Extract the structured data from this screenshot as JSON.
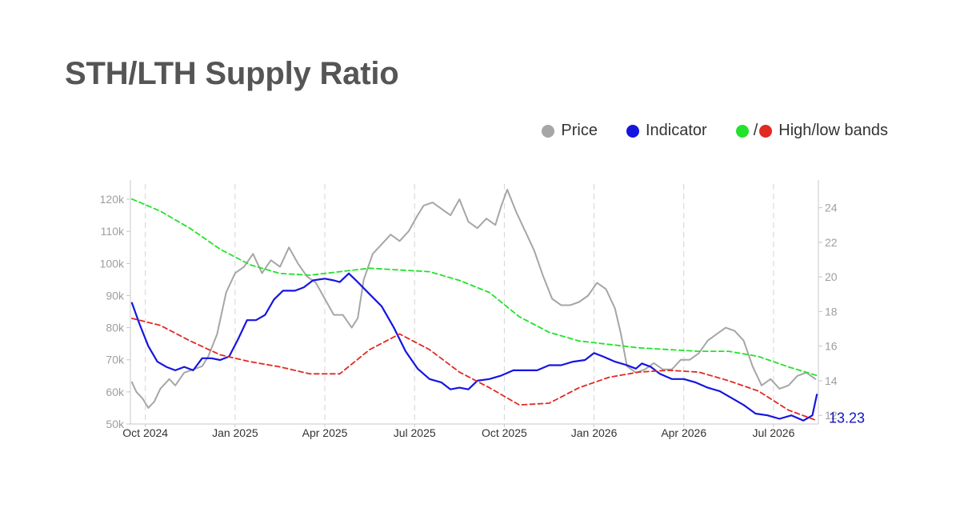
{
  "title": "STH/LTH Supply Ratio",
  "legend": {
    "price_label": "Price",
    "indicator_label": "Indicator",
    "bands_label": "High/low bands",
    "bands_separator": "/"
  },
  "colors": {
    "price": "#a6a6a6",
    "indicator": "#1515e0",
    "high_band": "#22e22b",
    "low_band": "#e02a22",
    "title": "#555555",
    "axis_text": "#9e9e9e",
    "last_value": "#1515c0"
  },
  "chart_data": {
    "type": "line",
    "last_value_label": "13.23",
    "x_ticks": [
      "Oct 2024",
      "Jan 2025",
      "Apr 2025",
      "Jul 2025",
      "Oct 2025",
      "Jan 2026",
      "Apr 2026",
      "Jul 2026"
    ],
    "x_range": [
      -0.5,
      22.5
    ],
    "y_left": {
      "ticks": [
        "50k",
        "60k",
        "70k",
        "80k",
        "90k",
        "100k",
        "110k",
        "120k"
      ],
      "range": [
        50000,
        126000
      ]
    },
    "y_right": {
      "ticks": [
        "12",
        "14",
        "16",
        "18",
        "20",
        "22",
        "24"
      ],
      "range": [
        11.5,
        25.6
      ]
    },
    "grid_vertical": true,
    "legend_position": "top-right",
    "series": [
      {
        "name": "Price",
        "axis": "left",
        "points": [
          [
            -0.45,
            63000
          ],
          [
            -0.3,
            60000
          ],
          [
            -0.1,
            58000
          ],
          [
            0.1,
            55000
          ],
          [
            0.3,
            57000
          ],
          [
            0.5,
            61000
          ],
          [
            0.8,
            64000
          ],
          [
            1.0,
            62000
          ],
          [
            1.3,
            66000
          ],
          [
            1.6,
            67000
          ],
          [
            1.9,
            68000
          ],
          [
            2.1,
            71000
          ],
          [
            2.4,
            78000
          ],
          [
            2.7,
            91000
          ],
          [
            3.0,
            97000
          ],
          [
            3.3,
            99000
          ],
          [
            3.6,
            103000
          ],
          [
            3.9,
            97000
          ],
          [
            4.2,
            101000
          ],
          [
            4.5,
            99000
          ],
          [
            4.8,
            105000
          ],
          [
            5.1,
            100000
          ],
          [
            5.4,
            96000
          ],
          [
            5.7,
            94000
          ],
          [
            6.0,
            89000
          ],
          [
            6.3,
            84000
          ],
          [
            6.6,
            84000
          ],
          [
            6.9,
            80000
          ],
          [
            7.1,
            83000
          ],
          [
            7.3,
            95000
          ],
          [
            7.6,
            103000
          ],
          [
            7.9,
            106000
          ],
          [
            8.2,
            109000
          ],
          [
            8.5,
            107000
          ],
          [
            8.8,
            110000
          ],
          [
            9.1,
            115000
          ],
          [
            9.3,
            118000
          ],
          [
            9.6,
            119000
          ],
          [
            9.9,
            117000
          ],
          [
            10.2,
            115000
          ],
          [
            10.5,
            120000
          ],
          [
            10.8,
            113000
          ],
          [
            11.1,
            111000
          ],
          [
            11.4,
            114000
          ],
          [
            11.7,
            112000
          ],
          [
            11.9,
            118000
          ],
          [
            12.1,
            123000
          ],
          [
            12.4,
            116000
          ],
          [
            12.7,
            110000
          ],
          [
            13.0,
            104000
          ],
          [
            13.3,
            96000
          ],
          [
            13.6,
            89000
          ],
          [
            13.9,
            87000
          ],
          [
            14.2,
            87000
          ],
          [
            14.5,
            88000
          ],
          [
            14.8,
            90000
          ],
          [
            15.1,
            94000
          ],
          [
            15.4,
            92000
          ],
          [
            15.7,
            86000
          ],
          [
            15.9,
            78000
          ],
          [
            16.1,
            68000
          ],
          [
            16.4,
            66000
          ],
          [
            16.7,
            67000
          ],
          [
            17.0,
            69000
          ],
          [
            17.3,
            67000
          ],
          [
            17.6,
            67000
          ],
          [
            17.9,
            70000
          ],
          [
            18.2,
            70000
          ],
          [
            18.5,
            72000
          ],
          [
            18.8,
            76000
          ],
          [
            19.1,
            78000
          ],
          [
            19.4,
            80000
          ],
          [
            19.7,
            79000
          ],
          [
            20.0,
            76000
          ],
          [
            20.3,
            68000
          ],
          [
            20.6,
            62000
          ],
          [
            20.9,
            64000
          ],
          [
            21.2,
            61000
          ],
          [
            21.5,
            62000
          ],
          [
            21.8,
            65000
          ],
          [
            22.1,
            66000
          ],
          [
            22.4,
            64000
          ]
        ]
      },
      {
        "name": "Indicator",
        "axis": "right",
        "points": [
          [
            -0.45,
            18.5
          ],
          [
            -0.2,
            17.3
          ],
          [
            0.1,
            16.0
          ],
          [
            0.4,
            15.1
          ],
          [
            0.7,
            14.8
          ],
          [
            1.0,
            14.6
          ],
          [
            1.3,
            14.8
          ],
          [
            1.6,
            14.6
          ],
          [
            1.9,
            15.3
          ],
          [
            2.2,
            15.3
          ],
          [
            2.5,
            15.2
          ],
          [
            2.8,
            15.4
          ],
          [
            3.1,
            16.4
          ],
          [
            3.4,
            17.5
          ],
          [
            3.7,
            17.5
          ],
          [
            4.0,
            17.8
          ],
          [
            4.3,
            18.7
          ],
          [
            4.6,
            19.2
          ],
          [
            5.0,
            19.2
          ],
          [
            5.3,
            19.4
          ],
          [
            5.6,
            19.8
          ],
          [
            6.0,
            19.9
          ],
          [
            6.3,
            19.8
          ],
          [
            6.5,
            19.7
          ],
          [
            6.8,
            20.2
          ],
          [
            7.1,
            19.7
          ],
          [
            7.5,
            19.0
          ],
          [
            7.9,
            18.3
          ],
          [
            8.3,
            17.1
          ],
          [
            8.7,
            15.7
          ],
          [
            9.1,
            14.7
          ],
          [
            9.5,
            14.1
          ],
          [
            9.9,
            13.9
          ],
          [
            10.2,
            13.5
          ],
          [
            10.5,
            13.6
          ],
          [
            10.8,
            13.5
          ],
          [
            11.1,
            14.0
          ],
          [
            11.5,
            14.1
          ],
          [
            11.9,
            14.3
          ],
          [
            12.3,
            14.6
          ],
          [
            12.7,
            14.6
          ],
          [
            13.1,
            14.6
          ],
          [
            13.5,
            14.9
          ],
          [
            13.9,
            14.9
          ],
          [
            14.3,
            15.1
          ],
          [
            14.7,
            15.2
          ],
          [
            15.0,
            15.6
          ],
          [
            15.3,
            15.4
          ],
          [
            15.7,
            15.1
          ],
          [
            16.1,
            14.9
          ],
          [
            16.4,
            14.7
          ],
          [
            16.6,
            15.0
          ],
          [
            16.9,
            14.8
          ],
          [
            17.2,
            14.4
          ],
          [
            17.6,
            14.1
          ],
          [
            18.0,
            14.1
          ],
          [
            18.4,
            13.9
          ],
          [
            18.8,
            13.6
          ],
          [
            19.2,
            13.4
          ],
          [
            19.6,
            13.0
          ],
          [
            20.0,
            12.6
          ],
          [
            20.4,
            12.1
          ],
          [
            20.8,
            12.0
          ],
          [
            21.2,
            11.8
          ],
          [
            21.6,
            12.0
          ],
          [
            22.0,
            11.7
          ],
          [
            22.3,
            12.0
          ],
          [
            22.45,
            13.2
          ]
        ]
      },
      {
        "name": "High band",
        "axis": "right",
        "dashed": true,
        "points": [
          [
            -0.45,
            24.5
          ],
          [
            0.5,
            23.8
          ],
          [
            1.5,
            22.8
          ],
          [
            2.5,
            21.6
          ],
          [
            3.5,
            20.7
          ],
          [
            4.5,
            20.2
          ],
          [
            5.5,
            20.1
          ],
          [
            6.5,
            20.3
          ],
          [
            7.5,
            20.5
          ],
          [
            8.5,
            20.4
          ],
          [
            9.5,
            20.3
          ],
          [
            10.5,
            19.8
          ],
          [
            11.5,
            19.1
          ],
          [
            12.5,
            17.7
          ],
          [
            13.5,
            16.8
          ],
          [
            14.5,
            16.3
          ],
          [
            15.5,
            16.1
          ],
          [
            16.5,
            15.9
          ],
          [
            17.5,
            15.8
          ],
          [
            18.5,
            15.7
          ],
          [
            19.5,
            15.7
          ],
          [
            20.5,
            15.4
          ],
          [
            21.5,
            14.8
          ],
          [
            22.45,
            14.3
          ]
        ]
      },
      {
        "name": "Low band",
        "axis": "right",
        "dashed": true,
        "points": [
          [
            -0.45,
            17.6
          ],
          [
            0.5,
            17.2
          ],
          [
            1.5,
            16.3
          ],
          [
            2.5,
            15.5
          ],
          [
            3.5,
            15.1
          ],
          [
            4.5,
            14.8
          ],
          [
            5.5,
            14.4
          ],
          [
            6.5,
            14.4
          ],
          [
            7.5,
            15.8
          ],
          [
            8.5,
            16.7
          ],
          [
            9.5,
            15.8
          ],
          [
            10.5,
            14.5
          ],
          [
            11.5,
            13.6
          ],
          [
            12.5,
            12.6
          ],
          [
            13.5,
            12.7
          ],
          [
            14.5,
            13.6
          ],
          [
            15.5,
            14.2
          ],
          [
            16.5,
            14.5
          ],
          [
            17.5,
            14.6
          ],
          [
            18.5,
            14.5
          ],
          [
            19.5,
            14.0
          ],
          [
            20.5,
            13.4
          ],
          [
            21.5,
            12.3
          ],
          [
            22.45,
            11.7
          ]
        ]
      }
    ]
  }
}
